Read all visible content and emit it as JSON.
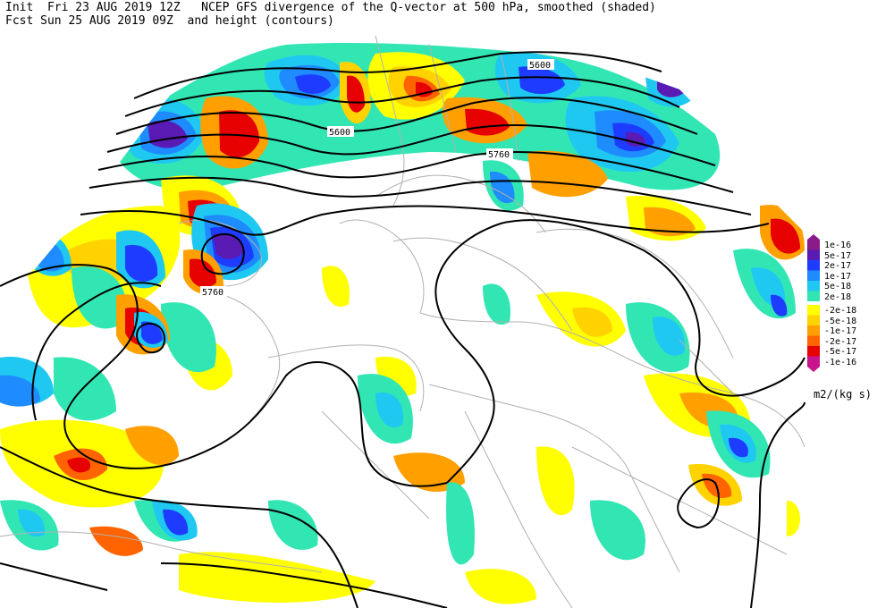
{
  "header": {
    "line1": "Init  Fri 23 AUG 2019 12Z   NCEP GFS divergence of the Q-vector at 500 hPa, smoothed (shaded)",
    "line2": "Fcst Sun 25 AUG 2019 09Z  and height (contours)"
  },
  "contour_labels": [
    "5600",
    "5600",
    "5760",
    "5760"
  ],
  "legend": {
    "levels": [
      {
        "label": "1e-16",
        "color": "#8b1a8b"
      },
      {
        "label": "5e-17",
        "color": "#5a1ab4"
      },
      {
        "label": "2e-17",
        "color": "#1e3cff"
      },
      {
        "label": "1e-17",
        "color": "#1e8cff"
      },
      {
        "label": "5e-18",
        "color": "#1ec8f0"
      },
      {
        "label": "2e-18",
        "color": "#32e6b4"
      },
      {
        "label": "-2e-18",
        "color": "#ffff00"
      },
      {
        "label": "-5e-18",
        "color": "#ffd200"
      },
      {
        "label": "-1e-17",
        "color": "#ffa000"
      },
      {
        "label": "-2e-17",
        "color": "#ff6400"
      },
      {
        "label": "-5e-17",
        "color": "#e60000"
      },
      {
        "label": "-1e-16",
        "color": "#c8148c"
      }
    ],
    "units": "m2/(kg s)"
  }
}
